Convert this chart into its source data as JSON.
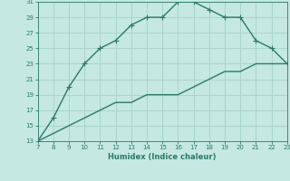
{
  "title": "",
  "xlabel": "Humidex (Indice chaleur)",
  "xlim": [
    7,
    23
  ],
  "ylim": [
    13,
    31
  ],
  "xticks": [
    7,
    8,
    9,
    10,
    11,
    12,
    13,
    14,
    15,
    16,
    17,
    18,
    19,
    20,
    21,
    22,
    23
  ],
  "yticks": [
    13,
    15,
    17,
    19,
    21,
    23,
    25,
    27,
    29,
    31
  ],
  "bg_color": "#c5e8e2",
  "grid_color": "#aad4cc",
  "line_color": "#2a7a6a",
  "upper_x": [
    7,
    8,
    9,
    10,
    11,
    12,
    13,
    14,
    15,
    16,
    17,
    18,
    19,
    20,
    21,
    22,
    23
  ],
  "upper_y": [
    13,
    16,
    20,
    23,
    25,
    26,
    28,
    29,
    29,
    31,
    31,
    30,
    29,
    29,
    26,
    25,
    23
  ],
  "lower_x": [
    7,
    8,
    9,
    10,
    11,
    12,
    13,
    14,
    15,
    16,
    17,
    18,
    19,
    20,
    21,
    22,
    23
  ],
  "lower_y": [
    13,
    14,
    15,
    16,
    17,
    18,
    18,
    19,
    19,
    19,
    20,
    21,
    22,
    22,
    23,
    23,
    23
  ],
  "marker_size": 4,
  "line_width": 1.0
}
